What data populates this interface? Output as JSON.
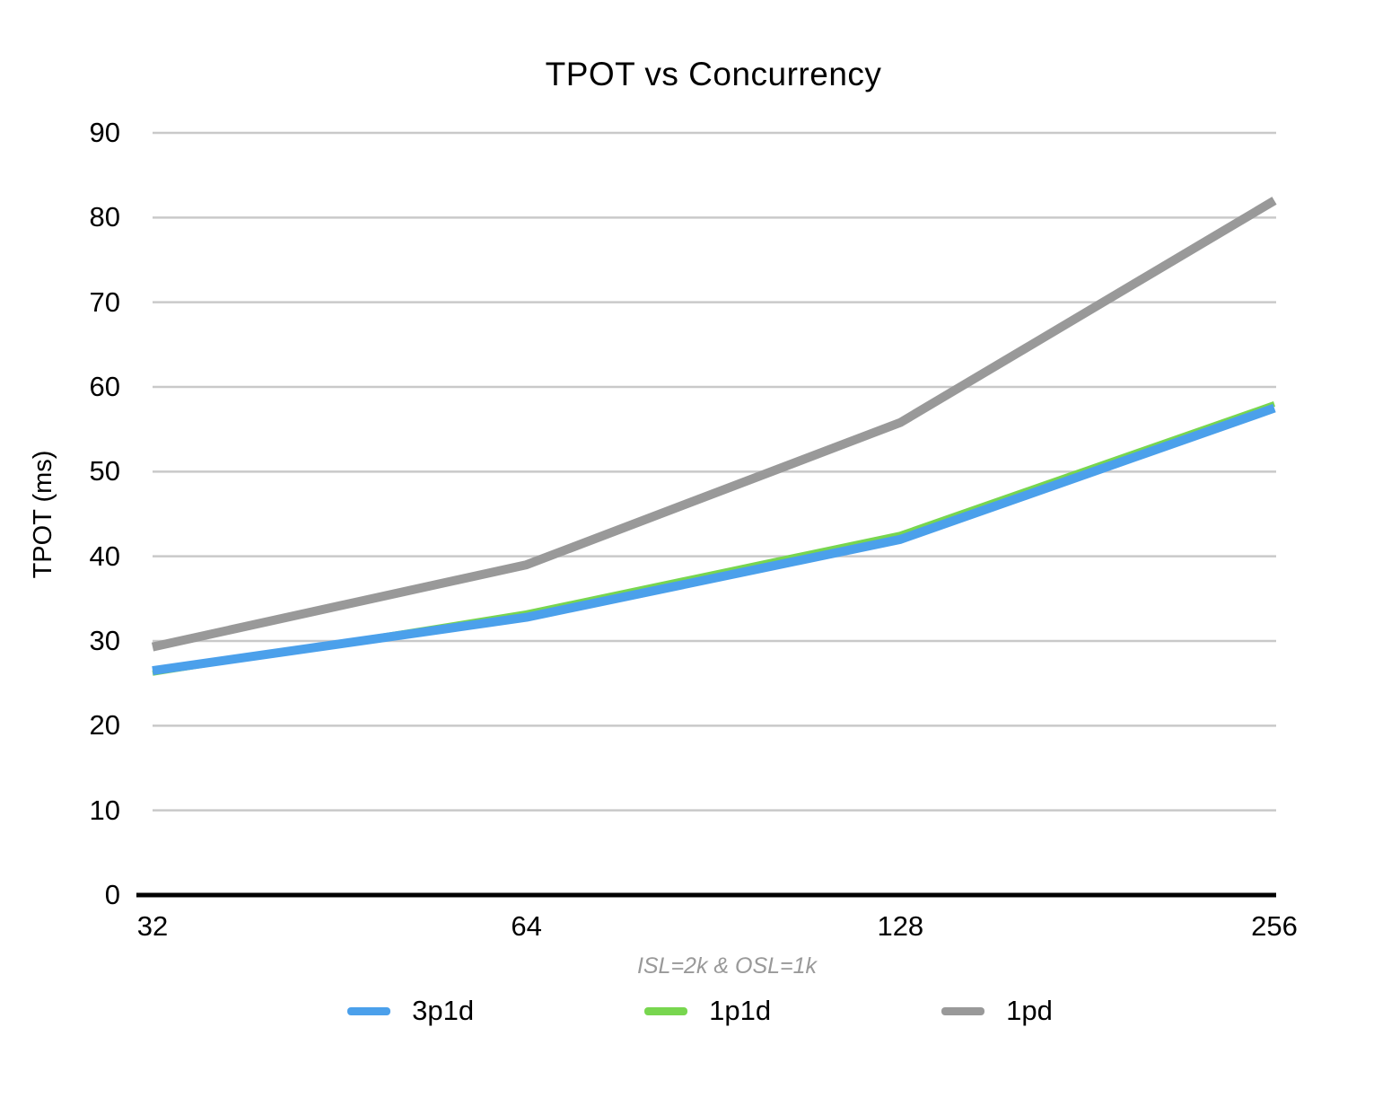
{
  "chart_data": {
    "type": "line",
    "title": "TPOT vs Concurrency",
    "ylabel": "TPOT (ms)",
    "xlabel_note": "ISL=2k & OSL=1k",
    "categories": [
      "32",
      "64",
      "128",
      "256"
    ],
    "series": [
      {
        "name": "3p1d",
        "color": "#4BA0EB",
        "stroke_width": 10,
        "values": [
          26.5,
          32.8,
          42.0,
          57.5
        ]
      },
      {
        "name": "1p1d",
        "color": "#78D64F",
        "stroke_width": 6,
        "values": [
          26.2,
          33.3,
          42.6,
          58.0
        ]
      },
      {
        "name": "1pd",
        "color": "#999999",
        "stroke_width": 10,
        "values": [
          29.3,
          39.0,
          55.8,
          82.0
        ]
      }
    ],
    "y_ticks": [
      0,
      10,
      20,
      30,
      40,
      50,
      60,
      70,
      80,
      90
    ],
    "ylim": [
      0,
      90
    ],
    "grid": true,
    "legend_position": "bottom",
    "colors": {
      "gridline": "#C9C9C9",
      "axis": "#000000",
      "subtitle": "#999999",
      "text": "#000000",
      "background": "#FFFFFF"
    }
  }
}
